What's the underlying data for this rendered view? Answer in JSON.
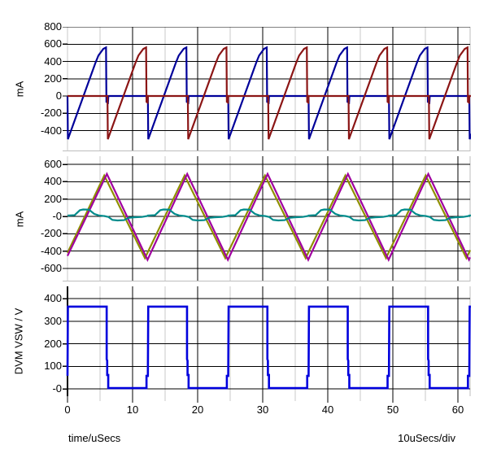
{
  "figure": {
    "background": "#ffffff",
    "grid": {
      "major_color": "#000000",
      "minor_color": "#c8c8c8",
      "border_color": "#bdbdbd",
      "tick_color": "#000000"
    },
    "x_axis": {
      "label": "time/uSecs",
      "scale_label": "10uSecs/div",
      "xlim": [
        0,
        61.875
      ],
      "major_ticks": [
        0,
        10,
        20,
        30,
        40,
        50,
        60
      ],
      "major_tick_labels": [
        "0",
        "10",
        "20",
        "30",
        "40",
        "50",
        "60"
      ],
      "minor_ticks": [
        5,
        15,
        25,
        35,
        45,
        55
      ]
    }
  },
  "chart_data": [
    {
      "type": "line",
      "ylabel": "mA",
      "ylim": [
        -640,
        800
      ],
      "y_ticks": {
        "values": [
          800,
          600,
          400,
          200,
          0,
          -200,
          -400
        ],
        "labels": [
          "800",
          "600",
          "400",
          "200",
          "0",
          "-200",
          "-400"
        ]
      },
      "series": [
        {
          "name": "navy-sawtooth-current",
          "color": "#000099",
          "width": 2.2,
          "period": 12.35,
          "repeat": 6,
          "t0": 0,
          "cycle": [
            [
              0,
              0
            ],
            [
              0.06,
              -500
            ],
            [
              4.3,
              385
            ],
            [
              4.75,
              468
            ],
            [
              5.5,
              545
            ],
            [
              5.92,
              562
            ],
            [
              5.98,
              -68
            ],
            [
              6.22,
              -78
            ],
            [
              6.28,
              0
            ],
            [
              12.28,
              0
            ]
          ]
        },
        {
          "name": "darkred-sawtooth-current",
          "color": "#8b1515",
          "width": 2.2,
          "period": 12.35,
          "repeat": 6,
          "t0": 0,
          "cycle": [
            [
              0,
              0
            ],
            [
              6.14,
              0
            ],
            [
              6.2,
              -500
            ],
            [
              10.45,
              385
            ],
            [
              10.9,
              468
            ],
            [
              11.65,
              545
            ],
            [
              12.08,
              562
            ],
            [
              12.14,
              -68
            ],
            [
              12.3,
              -76
            ]
          ]
        }
      ]
    },
    {
      "type": "line",
      "ylabel": "mA",
      "ylim": [
        -750,
        695
      ],
      "y_ticks": {
        "values": [
          600,
          400,
          200,
          0,
          -200,
          -400,
          -600
        ],
        "labels": [
          "600",
          "400",
          "200",
          "-0",
          "-200",
          "-400",
          "-600"
        ]
      },
      "series": [
        {
          "name": "olive-triangle-current",
          "color": "#8f8f00",
          "width": 2.2,
          "points": [
            [
              0,
              -420
            ],
            [
              5.65,
              472
            ],
            [
              11.9,
              -480
            ],
            [
              18.0,
              472
            ],
            [
              24.25,
              -480
            ],
            [
              30.35,
              472
            ],
            [
              36.6,
              -480
            ],
            [
              42.7,
              472
            ],
            [
              48.95,
              -480
            ],
            [
              55.05,
              472
            ],
            [
              61.3,
              -480
            ],
            [
              61.88,
              -389
            ]
          ]
        },
        {
          "name": "purple-triangle-current",
          "color": "#a000a0",
          "width": 2.2,
          "points": [
            [
              0,
              -455
            ],
            [
              6.05,
              490
            ],
            [
              12.3,
              -500
            ],
            [
              18.4,
              490
            ],
            [
              24.65,
              -500
            ],
            [
              30.75,
              490
            ],
            [
              37.0,
              -500
            ],
            [
              43.1,
              490
            ],
            [
              49.35,
              -500
            ],
            [
              55.45,
              490
            ],
            [
              61.7,
              -500
            ],
            [
              61.88,
              -472
            ]
          ]
        },
        {
          "name": "teal-ripple-current",
          "color": "#008b8b",
          "width": 2.2,
          "period": 12.35,
          "repeat": 6,
          "t0": 0,
          "cycle": [
            [
              0,
              10
            ],
            [
              1.1,
              15
            ],
            [
              1.9,
              72
            ],
            [
              2.4,
              80
            ],
            [
              3.3,
              78
            ],
            [
              4.1,
              30
            ],
            [
              4.8,
              12
            ],
            [
              5.7,
              4
            ],
            [
              6.3,
              -6
            ],
            [
              6.9,
              -40
            ],
            [
              7.7,
              -46
            ],
            [
              8.7,
              -42
            ],
            [
              9.4,
              -16
            ],
            [
              10.2,
              -10
            ],
            [
              11.4,
              -6
            ],
            [
              12.3,
              6
            ]
          ]
        }
      ]
    },
    {
      "type": "line",
      "ylabel": "DVM VSW / V",
      "ylim": [
        -32,
        455
      ],
      "y_ticks": {
        "values": [
          400,
          300,
          200,
          100,
          0
        ],
        "labels": [
          "400",
          "300",
          "200",
          "100",
          "-0"
        ]
      },
      "series": [
        {
          "name": "blue-square-voltage",
          "color": "#0000dd",
          "width": 2.6,
          "period": 12.35,
          "repeat": 6,
          "t0": 0,
          "cycle": [
            [
              0,
              58
            ],
            [
              0.06,
              365
            ],
            [
              6.02,
              365
            ],
            [
              6.02,
              132
            ],
            [
              6.1,
              125
            ],
            [
              6.1,
              62
            ],
            [
              6.26,
              62
            ],
            [
              6.26,
              4
            ],
            [
              12.14,
              4
            ],
            [
              12.14,
              58
            ],
            [
              12.33,
              58
            ]
          ]
        }
      ]
    }
  ]
}
